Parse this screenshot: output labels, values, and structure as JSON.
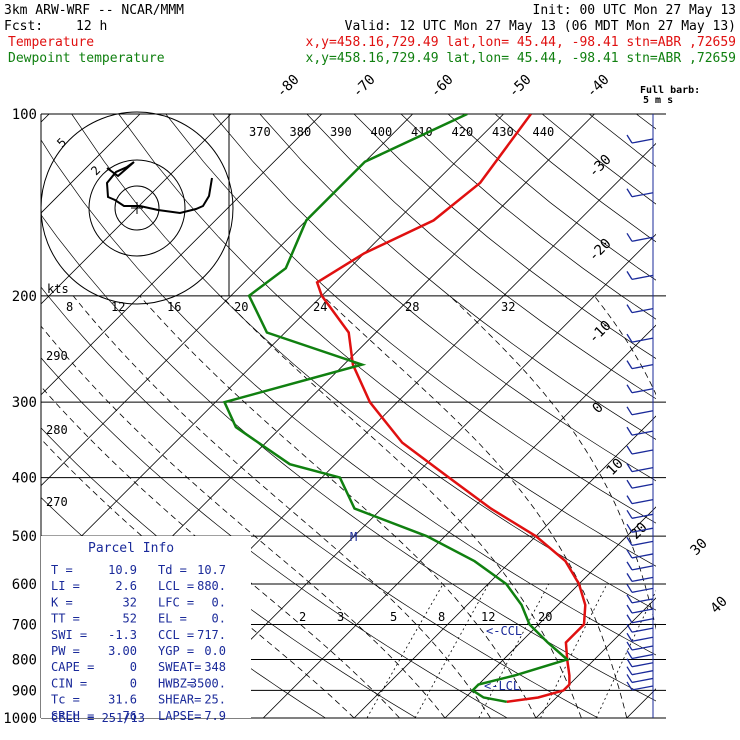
{
  "header": {
    "model": "3km ARW-WRF -- NCAR/MMM",
    "init": "Init: 00 UTC Mon 27 May 13",
    "fcst_label": "Fcst:",
    "fcst_value": "12 h",
    "valid": "Valid: 12 UTC Mon 27 May 13 (06 MDT Mon 27 May 13)",
    "temp_label": "Temperature",
    "temp_info": "x,y=458.16,729.49   lat,lon= 45.44, -98.41   stn=ABR ,72659",
    "dew_label": "Dewpoint temperature",
    "dew_info": "x,y=458.16,729.49   lat,lon= 45.44, -98.41   stn=ABR ,72659"
  },
  "colors": {
    "temperature": "#e01010",
    "dewpoint": "#108010",
    "parcel": "#1a2a9a",
    "axes": "#000000"
  },
  "chart_data": {
    "type": "line",
    "subtype": "skew-T log-P sounding",
    "pressure_ticks": [
      "100",
      "200",
      "300",
      "400",
      "500",
      "600",
      "700",
      "800",
      "900",
      "1000"
    ],
    "isotherm_labels": [
      "-80",
      "-70",
      "-60",
      "-50",
      "-40",
      "-30",
      "-20",
      "-10",
      "0",
      "10",
      "20",
      "30",
      "40"
    ],
    "theta_labels_top": [
      "370",
      "380",
      "390",
      "400",
      "410",
      "420",
      "430",
      "440"
    ],
    "theta_labels_left": [
      "290",
      "280",
      "270"
    ],
    "hodo_speed_labels": [
      "8",
      "12",
      "16",
      "20",
      "24",
      "28",
      "32"
    ],
    "hodo_ring_labels": [
      "5",
      "2"
    ],
    "hodo_units": "kts",
    "mixing_ratio_labels": [
      "2",
      "3",
      "5",
      "8",
      "12",
      "20"
    ],
    "series": [
      {
        "name": "Temperature",
        "pressure": [
          100,
          130,
          150,
          170,
          190,
          200,
          230,
          260,
          300,
          350,
          400,
          450,
          500,
          550,
          600,
          650,
          700,
          750,
          800,
          850,
          880,
          900,
          925,
          940
        ],
        "temp_c": [
          -57,
          -55,
          -56,
          -60,
          -62,
          -60,
          -53,
          -49,
          -43,
          -35,
          -26,
          -18,
          -10,
          -4,
          0,
          3,
          5,
          5,
          7,
          9,
          10,
          10,
          8,
          5
        ]
      },
      {
        "name": "Dewpoint temperature",
        "pressure": [
          100,
          120,
          150,
          180,
          200,
          230,
          260,
          300,
          330,
          380,
          400,
          450,
          500,
          550,
          600,
          650,
          700,
          750,
          800,
          850,
          880,
          900,
          925,
          940
        ],
        "dewpoint_c": [
          -64,
          -70,
          -70,
          -67,
          -68,
          -62,
          -48,
          -59,
          -55,
          -45,
          -38,
          -33,
          -22,
          -14,
          -8,
          -4,
          -1,
          3,
          7,
          3,
          0,
          0,
          2,
          5
        ]
      }
    ],
    "wind_barb_label": "Full barb:",
    "wind_barb_units": "5 m s",
    "levels": {
      "ccl_label": "<-CCL",
      "lcl_label": "<-LCL",
      "m_label": "M"
    }
  },
  "parcel_info": {
    "title": "Parcel Info",
    "rows": [
      {
        "l1": "T  =",
        "v1": "10.9",
        "l2": "Td =",
        "v2": "10.7"
      },
      {
        "l1": "LI =",
        "v1": "2.6",
        "l2": "LCL =",
        "v2": "880."
      },
      {
        "l1": "K  =",
        "v1": "32",
        "l2": "LFC =",
        "v2": "0."
      },
      {
        "l1": "TT =",
        "v1": "52",
        "l2": "EL  =",
        "v2": "0."
      },
      {
        "l1": "SWI =",
        "v1": "-1.3",
        "l2": "CCL =",
        "v2": "717."
      },
      {
        "l1": "PW =",
        "v1": "3.00",
        "l2": "YGP =",
        "v2": "0.0"
      },
      {
        "l1": "CAPE =",
        "v1": "0",
        "l2": "SWEAT=",
        "v2": "348"
      },
      {
        "l1": "CIN  =",
        "v1": "0",
        "l2": "HWBZ=",
        "v2": "3500."
      },
      {
        "l1": "Tc   =",
        "v1": "31.6",
        "l2": "SHEAR=",
        "v2": "25."
      },
      {
        "l1": "SREH =",
        "v1": "76",
        "l2": "LAPSE=",
        "v2": "7.9"
      }
    ],
    "cell": "CELL = 251/13"
  }
}
